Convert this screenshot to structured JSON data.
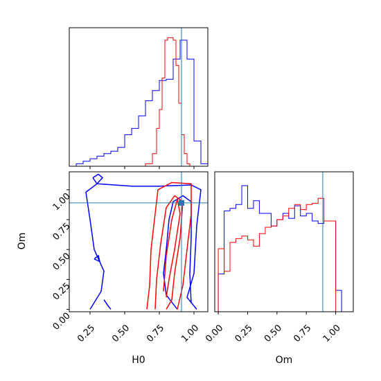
{
  "chart_data": [
    {
      "panel": "H0 marginal",
      "type": "line",
      "style": "step histogram",
      "x_range": [
        0.1,
        1.1
      ],
      "y_ticks_shown": false,
      "x_tick_labels_shown": false,
      "truth_value": 0.91,
      "series": [
        {
          "color": "#0000ff",
          "bin_edges": [
            0.15,
            0.2,
            0.25,
            0.3,
            0.35,
            0.4,
            0.45,
            0.5,
            0.55,
            0.6,
            0.65,
            0.7,
            0.75,
            0.8,
            0.85,
            0.9,
            0.95,
            1.0,
            1.05,
            1.1
          ],
          "counts": [
            0.02,
            0.04,
            0.06,
            0.08,
            0.1,
            0.12,
            0.15,
            0.25,
            0.3,
            0.4,
            0.52,
            0.6,
            0.68,
            0.69,
            0.85,
            1.0,
            0.85,
            0.2,
            0.02
          ]
        },
        {
          "color": "#ff0000",
          "bin_edges": [
            0.65,
            0.7,
            0.73,
            0.75,
            0.77,
            0.79,
            0.81,
            0.83,
            0.85,
            0.87,
            0.89,
            0.91,
            0.93,
            0.95,
            0.97
          ],
          "counts": [
            0.02,
            0.1,
            0.3,
            0.45,
            0.7,
            1.0,
            1.02,
            1.02,
            1.0,
            0.8,
            0.5,
            0.25,
            0.1,
            0.02
          ]
        }
      ]
    },
    {
      "panel": "H0 vs Om",
      "type": "line",
      "style": "2D density contours",
      "xlabel": "H0",
      "ylabel": "Om",
      "x_ticks": [
        "0.25",
        "0.50",
        "0.75",
        "1.00"
      ],
      "x_tick_values": [
        0.25,
        0.5,
        0.75,
        1.0
      ],
      "y_ticks": [
        "0.00",
        "0.25",
        "0.50",
        "0.75",
        "1.00"
      ],
      "y_tick_values": [
        0.0,
        0.25,
        0.5,
        0.75,
        1.0
      ],
      "x_range": [
        0.1,
        1.1
      ],
      "y_range": [
        -0.02,
        1.15
      ],
      "truth": [
        0.91,
        0.89
      ],
      "contours": [
        {
          "color": "#0000ff",
          "points": [
            [
              0.25,
              0.0
            ],
            [
              0.33,
              0.15
            ],
            [
              0.35,
              0.32
            ],
            [
              0.28,
              0.5
            ],
            [
              0.25,
              0.75
            ],
            [
              0.22,
              0.98
            ],
            [
              0.3,
              1.05
            ],
            [
              0.55,
              1.03
            ],
            [
              0.75,
              1.03
            ],
            [
              0.98,
              1.04
            ],
            [
              1.05,
              1.0
            ],
            [
              1.02,
              0.7
            ],
            [
              1.0,
              0.3
            ],
            [
              0.95,
              0.1
            ],
            [
              1.02,
              0.0
            ]
          ]
        },
        {
          "color": "#0000ff",
          "points": [
            [
              0.88,
              0.0
            ],
            [
              0.8,
              0.12
            ],
            [
              0.78,
              0.3
            ],
            [
              0.8,
              0.5
            ],
            [
              0.82,
              0.75
            ],
            [
              0.85,
              0.9
            ],
            [
              0.92,
              0.95
            ],
            [
              0.98,
              0.9
            ],
            [
              0.98,
              0.6
            ],
            [
              0.97,
              0.3
            ],
            [
              0.98,
              0.05
            ]
          ]
        },
        {
          "color": "#0000ff",
          "points": [
            [
              0.27,
              1.1
            ],
            [
              0.31,
              1.13
            ],
            [
              0.34,
              1.1
            ],
            [
              0.3,
              1.05
            ],
            [
              0.27,
              1.1
            ]
          ]
        },
        {
          "color": "#0000ff",
          "points": [
            [
              0.28,
              0.42
            ],
            [
              0.31,
              0.45
            ],
            [
              0.32,
              0.4
            ],
            [
              0.28,
              0.42
            ]
          ]
        },
        {
          "color": "#0000ff",
          "points": [
            [
              0.35,
              0.08
            ],
            [
              0.38,
              0.03
            ],
            [
              0.4,
              0.0
            ]
          ]
        },
        {
          "color": "#ff0000",
          "points": [
            [
              0.66,
              0.0
            ],
            [
              0.68,
              0.2
            ],
            [
              0.69,
              0.5
            ],
            [
              0.72,
              0.8
            ],
            [
              0.74,
              1.0
            ],
            [
              0.84,
              1.06
            ],
            [
              0.98,
              1.05
            ],
            [
              0.98,
              0.8
            ],
            [
              0.95,
              0.5
            ],
            [
              0.92,
              0.2
            ],
            [
              0.88,
              0.0
            ]
          ]
        },
        {
          "color": "#ff0000",
          "points": [
            [
              0.72,
              0.0
            ],
            [
              0.73,
              0.25
            ],
            [
              0.76,
              0.55
            ],
            [
              0.8,
              0.85
            ],
            [
              0.86,
              0.95
            ],
            [
              0.92,
              0.9
            ],
            [
              0.9,
              0.6
            ],
            [
              0.86,
              0.3
            ],
            [
              0.84,
              0.08
            ],
            [
              0.8,
              0.0
            ]
          ]
        },
        {
          "color": "#ff0000",
          "points": [
            [
              0.78,
              0.15
            ],
            [
              0.8,
              0.45
            ],
            [
              0.84,
              0.75
            ],
            [
              0.88,
              0.92
            ],
            [
              0.9,
              0.8
            ],
            [
              0.86,
              0.5
            ],
            [
              0.82,
              0.25
            ],
            [
              0.8,
              0.1
            ]
          ]
        }
      ]
    },
    {
      "panel": "Om marginal",
      "type": "line",
      "style": "step histogram",
      "xlabel": "Om",
      "x_ticks": [
        "0.00",
        "0.25",
        "0.50",
        "0.75",
        "1.00"
      ],
      "x_tick_values": [
        0.0,
        0.25,
        0.5,
        0.75,
        1.0
      ],
      "x_range": [
        -0.03,
        1.15
      ],
      "y_ticks_shown": false,
      "truth_value": 0.89,
      "series": [
        {
          "color": "#0000ff",
          "bin_edges": [
            0.0,
            0.05,
            0.1,
            0.15,
            0.2,
            0.25,
            0.3,
            0.35,
            0.4,
            0.45,
            0.5,
            0.55,
            0.6,
            0.65,
            0.7,
            0.75,
            0.8,
            0.85,
            0.9,
            0.95,
            1.0,
            1.05
          ],
          "counts": [
            0.3,
            0.8,
            0.82,
            0.85,
            1.0,
            0.82,
            0.88,
            0.78,
            0.78,
            0.68,
            0.73,
            0.78,
            0.74,
            0.84,
            0.76,
            0.78,
            0.72,
            0.7,
            0.72,
            0.72,
            0.17
          ]
        },
        {
          "color": "#ff0000",
          "bin_edges": [
            0.0,
            0.05,
            0.1,
            0.15,
            0.2,
            0.25,
            0.3,
            0.35,
            0.4,
            0.45,
            0.5,
            0.55,
            0.6,
            0.65,
            0.7,
            0.75,
            0.8,
            0.85,
            0.9,
            0.95,
            1.0
          ],
          "counts": [
            0.5,
            0.32,
            0.55,
            0.58,
            0.6,
            0.57,
            0.52,
            0.62,
            0.67,
            0.68,
            0.73,
            0.76,
            0.82,
            0.85,
            0.81,
            0.85,
            0.86,
            0.9,
            0.72,
            0.72
          ]
        }
      ]
    }
  ],
  "colors": {
    "truth_line": "#1f77b4",
    "frame": "#000000"
  }
}
